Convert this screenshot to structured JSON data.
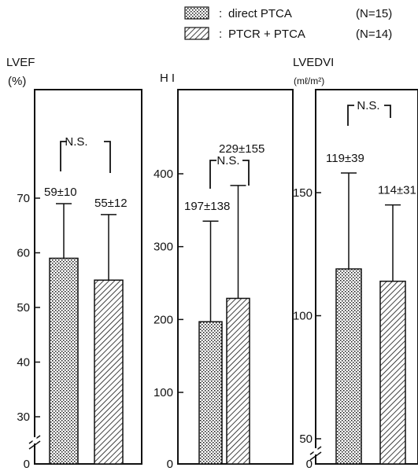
{
  "legend": {
    "items": [
      {
        "label": "direct PTCA",
        "n": "(N=15)",
        "pattern": "dots"
      },
      {
        "label": "PTCR + PTCA",
        "n": "(N=14)",
        "pattern": "hatch"
      }
    ]
  },
  "chart_data": [
    {
      "type": "bar",
      "title": "LVEF",
      "unit": "(%)",
      "axis_break": true,
      "ylim": [
        25,
        80
      ],
      "yticks": [
        "0",
        "30",
        "40",
        "50",
        "60",
        "70"
      ],
      "categories": [
        "direct PTCA",
        "PTCR + PTCA"
      ],
      "values": [
        59,
        55
      ],
      "sd": [
        10,
        12
      ],
      "value_labels": [
        "59±10",
        "55±12"
      ],
      "patterns": [
        "dots",
        "hatch"
      ],
      "significance": "N.S."
    },
    {
      "type": "bar",
      "title": "HI",
      "unit": "",
      "axis_break": false,
      "ylim": [
        0,
        460
      ],
      "yticks": [
        "0",
        "100",
        "200",
        "300",
        "400"
      ],
      "categories": [
        "direct PTCA",
        "PTCR + PTCA"
      ],
      "values": [
        197,
        229
      ],
      "sd": [
        138,
        155
      ],
      "value_labels": [
        "197±138",
        "229±155"
      ],
      "patterns": [
        "dots",
        "hatch"
      ],
      "significance": "N.S."
    },
    {
      "type": "bar",
      "title": "LVEDVI",
      "unit": "(mℓ/m²)",
      "axis_break": true,
      "ylim": [
        45,
        175
      ],
      "yticks": [
        "0",
        "50",
        "100",
        "150"
      ],
      "categories": [
        "direct PTCA",
        "PTCR + PTCA"
      ],
      "values": [
        119,
        114
      ],
      "sd": [
        39,
        31
      ],
      "value_labels": [
        "119±39",
        "114±31"
      ],
      "patterns": [
        "dots",
        "hatch"
      ],
      "significance": "N.S."
    }
  ]
}
